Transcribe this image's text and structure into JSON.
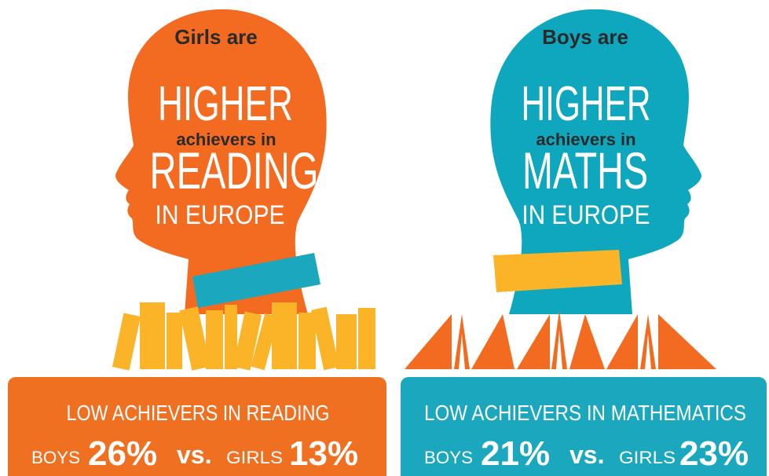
{
  "left": {
    "intro": "Girls are",
    "higher": "HIGHER",
    "achievers": "achievers in",
    "subject": "READING",
    "region": "IN EUROPE",
    "box": {
      "title": "LOW ACHIEVERS IN READING",
      "boys": "BOYS",
      "boys_value": "26%",
      "vs": "vs.",
      "girls": "GIRLS",
      "girls_value": "13%"
    }
  },
  "right": {
    "intro": "Boys are",
    "higher": "HIGHER",
    "achievers": "achievers in",
    "subject": "MATHS",
    "region": "IN EUROPE",
    "box": {
      "title": "LOW ACHIEVERS IN MATHEMATICS",
      "boys": "BOYS",
      "boys_value": "21%",
      "vs": "vs.",
      "girls": "GIRLS",
      "girls_value": "23%"
    }
  }
}
